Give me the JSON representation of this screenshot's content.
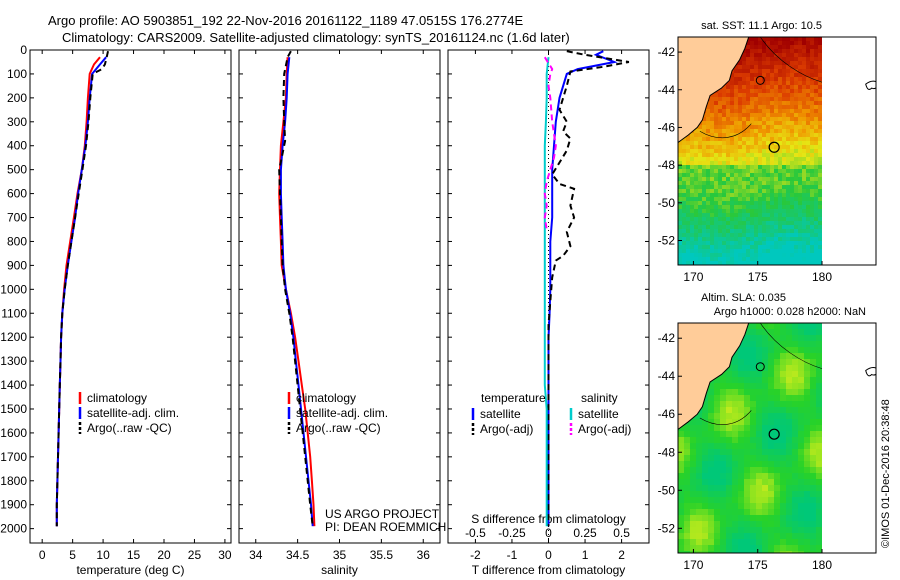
{
  "header": {
    "line1": "Argo profile: AO 5903851_192 22-Nov-2016 20161122_1189 47.0515S 176.2774E",
    "line2": "Climatology: CARS2009. Satellite-adjusted climatology: synTS_20161124.nc (1.6d later)"
  },
  "chart_data": [
    {
      "type": "line",
      "id": "temperature",
      "xlabel": "temperature (deg C)",
      "xlim": [
        -2,
        31
      ],
      "xticks": [
        0,
        5,
        10,
        15,
        20,
        25,
        30
      ],
      "ylim": [
        2060,
        0
      ],
      "yticks": [
        0,
        100,
        200,
        300,
        400,
        500,
        600,
        700,
        800,
        900,
        1000,
        1100,
        1200,
        1300,
        1400,
        1500,
        1600,
        1700,
        1800,
        1900,
        2000
      ],
      "series": [
        {
          "name": "climatology",
          "color": "#ff0000",
          "points": [
            [
              9.5,
              30
            ],
            [
              8.5,
              60
            ],
            [
              7.8,
              100
            ],
            [
              7.5,
              200
            ],
            [
              7.3,
              300
            ],
            [
              7.0,
              400
            ],
            [
              6.5,
              500
            ],
            [
              5.8,
              600
            ],
            [
              5.2,
              700
            ],
            [
              4.6,
              800
            ],
            [
              4.0,
              900
            ],
            [
              3.6,
              1000
            ],
            [
              3.3,
              1100
            ],
            [
              3.1,
              1200
            ],
            [
              3.0,
              1300
            ],
            [
              2.9,
              1400
            ],
            [
              2.8,
              1500
            ],
            [
              2.7,
              1600
            ],
            [
              2.6,
              1700
            ],
            [
              2.5,
              1800
            ],
            [
              2.4,
              1900
            ],
            [
              2.4,
              1990
            ]
          ]
        },
        {
          "name": "satellite-adj. clim.",
          "color": "#0000ff",
          "points": [
            [
              10.5,
              30
            ],
            [
              9.5,
              60
            ],
            [
              8.2,
              100
            ],
            [
              7.8,
              200
            ],
            [
              7.5,
              300
            ],
            [
              7.1,
              400
            ],
            [
              6.5,
              500
            ],
            [
              5.9,
              600
            ],
            [
              5.4,
              700
            ],
            [
              4.8,
              800
            ],
            [
              4.2,
              900
            ],
            [
              3.7,
              1000
            ],
            [
              3.3,
              1100
            ],
            [
              3.1,
              1200
            ],
            [
              3.0,
              1300
            ],
            [
              2.9,
              1400
            ],
            [
              2.8,
              1500
            ],
            [
              2.7,
              1600
            ],
            [
              2.6,
              1700
            ],
            [
              2.5,
              1800
            ],
            [
              2.4,
              1900
            ],
            [
              2.4,
              1990
            ]
          ]
        },
        {
          "name": "Argo(..raw -QC)",
          "color": "#000000",
          "dashed": true,
          "points": [
            [
              10.8,
              5
            ],
            [
              10.6,
              30
            ],
            [
              10.3,
              60
            ],
            [
              9.8,
              80
            ],
            [
              8.3,
              100
            ],
            [
              7.9,
              200
            ],
            [
              7.6,
              300
            ],
            [
              7.2,
              400
            ],
            [
              6.6,
              500
            ],
            [
              6.0,
              600
            ],
            [
              5.4,
              700
            ],
            [
              4.8,
              800
            ],
            [
              4.2,
              900
            ],
            [
              3.7,
              1000
            ],
            [
              3.3,
              1100
            ],
            [
              3.1,
              1200
            ],
            [
              3.0,
              1300
            ],
            [
              2.9,
              1400
            ],
            [
              2.8,
              1500
            ],
            [
              2.7,
              1600
            ],
            [
              2.6,
              1700
            ],
            [
              2.5,
              1800
            ],
            [
              2.4,
              1900
            ],
            [
              2.4,
              1990
            ]
          ]
        }
      ],
      "legend": [
        "climatology",
        "satellite-adj. clim.",
        "Argo(..raw -QC)"
      ]
    },
    {
      "type": "line",
      "id": "salinity",
      "xlabel": "salinity",
      "xlim": [
        33.8,
        36.2
      ],
      "xticks": [
        34,
        34.5,
        35,
        35.5,
        36
      ],
      "ylim": [
        2060,
        0
      ],
      "series": [
        {
          "name": "climatology",
          "color": "#ff0000",
          "points": [
            [
              34.38,
              30
            ],
            [
              34.37,
              100
            ],
            [
              34.36,
              200
            ],
            [
              34.33,
              300
            ],
            [
              34.3,
              400
            ],
            [
              34.29,
              500
            ],
            [
              34.28,
              600
            ],
            [
              34.29,
              700
            ],
            [
              34.3,
              800
            ],
            [
              34.31,
              900
            ],
            [
              34.36,
              1000
            ],
            [
              34.42,
              1100
            ],
            [
              34.47,
              1200
            ],
            [
              34.51,
              1300
            ],
            [
              34.55,
              1400
            ],
            [
              34.59,
              1500
            ],
            [
              34.62,
              1600
            ],
            [
              34.65,
              1700
            ],
            [
              34.67,
              1800
            ],
            [
              34.69,
              1900
            ],
            [
              34.7,
              1990
            ]
          ]
        },
        {
          "name": "satellite-adj. clim.",
          "color": "#0000ff",
          "points": [
            [
              34.4,
              30
            ],
            [
              34.38,
              100
            ],
            [
              34.37,
              200
            ],
            [
              34.35,
              300
            ],
            [
              34.32,
              400
            ],
            [
              34.3,
              500
            ],
            [
              34.3,
              600
            ],
            [
              34.31,
              700
            ],
            [
              34.32,
              800
            ],
            [
              34.33,
              900
            ],
            [
              34.36,
              1000
            ],
            [
              34.41,
              1100
            ],
            [
              34.45,
              1200
            ],
            [
              34.48,
              1300
            ],
            [
              34.51,
              1400
            ],
            [
              34.54,
              1500
            ],
            [
              34.57,
              1600
            ],
            [
              34.6,
              1700
            ],
            [
              34.63,
              1800
            ],
            [
              34.66,
              1900
            ],
            [
              34.68,
              1990
            ]
          ]
        },
        {
          "name": "Argo(..raw -QC)",
          "color": "#000000",
          "dashed": true,
          "points": [
            [
              34.42,
              5
            ],
            [
              34.38,
              30
            ],
            [
              34.34,
              100
            ],
            [
              34.33,
              200
            ],
            [
              34.34,
              300
            ],
            [
              34.35,
              380
            ],
            [
              34.31,
              450
            ],
            [
              34.28,
              500
            ],
            [
              34.29,
              600
            ],
            [
              34.3,
              700
            ],
            [
              34.31,
              800
            ],
            [
              34.32,
              900
            ],
            [
              34.35,
              1000
            ],
            [
              34.4,
              1100
            ],
            [
              34.44,
              1200
            ],
            [
              34.47,
              1300
            ],
            [
              34.5,
              1400
            ],
            [
              34.53,
              1500
            ],
            [
              34.56,
              1600
            ],
            [
              34.59,
              1700
            ],
            [
              34.62,
              1800
            ],
            [
              34.65,
              1900
            ],
            [
              34.68,
              1990
            ]
          ]
        }
      ],
      "legend": [
        "climatology",
        "satellite-adj. clim.",
        "Argo(..raw -QC)"
      ]
    },
    {
      "type": "line",
      "id": "difference",
      "xlabel": "T difference from climatology",
      "xlabel_top": "S difference from climatology",
      "xlim": [
        -2.75,
        2.75
      ],
      "xticks": [
        -2,
        -1,
        0,
        1,
        2
      ],
      "xticks_top": [
        -0.5,
        -0.25,
        0,
        0.25,
        0.5
      ],
      "xticklabels_top": [
        "-0.5",
        "-0.25",
        "0",
        "0.25",
        "0.5"
      ],
      "ylim": [
        2060,
        0
      ],
      "series": [
        {
          "name": "temperature satellite",
          "color": "#0000ff",
          "points": [
            [
              1.5,
              5
            ],
            [
              1.3,
              20
            ],
            [
              1.8,
              50
            ],
            [
              0.8,
              80
            ],
            [
              0.5,
              100
            ],
            [
              0.3,
              200
            ],
            [
              0.2,
              300
            ],
            [
              0.15,
              400
            ],
            [
              0.1,
              500
            ],
            [
              0.1,
              600
            ],
            [
              0.1,
              700
            ],
            [
              0.05,
              800
            ],
            [
              0.05,
              900
            ],
            [
              0.05,
              1000
            ],
            [
              0.03,
              1100
            ],
            [
              0.0,
              1200
            ],
            [
              0.0,
              1300
            ],
            [
              0.0,
              1400
            ],
            [
              0.0,
              1500
            ],
            [
              0.0,
              1600
            ],
            [
              0.0,
              1700
            ],
            [
              0.0,
              1800
            ],
            [
              0.0,
              1900
            ],
            [
              0.0,
              1990
            ]
          ]
        },
        {
          "name": "temperature Argo(-adj)",
          "color": "#000000",
          "dashed": true,
          "points": [
            [
              0.5,
              5
            ],
            [
              1.0,
              20
            ],
            [
              2.2,
              50
            ],
            [
              1.5,
              70
            ],
            [
              0.6,
              90
            ],
            [
              0.5,
              150
            ],
            [
              0.3,
              250
            ],
            [
              0.5,
              300
            ],
            [
              0.4,
              340
            ],
            [
              0.6,
              370
            ],
            [
              0.5,
              420
            ],
            [
              0.3,
              470
            ],
            [
              0.1,
              520
            ],
            [
              0.3,
              560
            ],
            [
              0.7,
              580
            ],
            [
              0.6,
              650
            ],
            [
              0.7,
              700
            ],
            [
              0.5,
              760
            ],
            [
              0.6,
              820
            ],
            [
              0.4,
              860
            ],
            [
              0.2,
              880
            ],
            [
              0.1,
              950
            ],
            [
              0.05,
              1050
            ],
            [
              0.0,
              1150
            ],
            [
              0.0,
              1300
            ],
            [
              0.0,
              1500
            ],
            [
              0.0,
              1700
            ],
            [
              0.0,
              1900
            ],
            [
              0.0,
              1990
            ]
          ]
        },
        {
          "name": "salinity satellite",
          "color": "#00cccc",
          "points": [
            [
              0.0,
              30
            ],
            [
              -0.05,
              100
            ],
            [
              -0.05,
              200
            ],
            [
              -0.07,
              300
            ],
            [
              -0.1,
              400
            ],
            [
              -0.1,
              500
            ],
            [
              -0.1,
              600
            ],
            [
              -0.1,
              700
            ],
            [
              -0.1,
              800
            ],
            [
              -0.1,
              900
            ],
            [
              -0.1,
              1000
            ],
            [
              -0.1,
              1100
            ],
            [
              -0.1,
              1200
            ],
            [
              -0.1,
              1300
            ],
            [
              -0.1,
              1400
            ],
            [
              -0.05,
              1500
            ],
            [
              -0.05,
              1600
            ],
            [
              -0.05,
              1700
            ],
            [
              -0.05,
              1800
            ],
            [
              -0.05,
              1900
            ],
            [
              -0.05,
              1990
            ]
          ]
        },
        {
          "name": "salinity Argo(-adj)",
          "color": "#ff00ff",
          "dashed": true,
          "points": [
            [
              -0.1,
              30
            ],
            [
              0.1,
              80
            ],
            [
              0.05,
              100
            ],
            [
              0.0,
              150
            ],
            [
              0.05,
              200
            ],
            [
              0.1,
              300
            ],
            [
              0.2,
              400
            ],
            [
              0.15,
              450
            ],
            [
              0.05,
              500
            ],
            [
              -0.05,
              550
            ],
            [
              -0.1,
              600
            ],
            [
              -0.05,
              650
            ],
            [
              -0.1,
              700
            ],
            [
              -0.05,
              750
            ]
          ]
        }
      ],
      "legend_groups": [
        {
          "title": "temperature",
          "items": [
            "satellite",
            "Argo(-adj)"
          ]
        },
        {
          "title": "salinity",
          "items": [
            "satellite",
            "Argo(-adj)"
          ]
        }
      ]
    },
    {
      "type": "heatmap",
      "id": "sst_map",
      "title": "sat. SST: 11.1  Argo: 10.5",
      "xticks": [
        170,
        175,
        180
      ],
      "yticks": [
        -42,
        -44,
        -46,
        -48,
        -50,
        -52
      ],
      "xlim": [
        168.8,
        184.2
      ],
      "ylim": [
        -53.3,
        -41.2
      ],
      "data_xmax": 180,
      "float_position": [
        176.28,
        -47.05
      ]
    },
    {
      "type": "heatmap",
      "id": "sla_map",
      "title_line1": "Altim. SLA: 0.035",
      "title_line2": "Argo h1000: 0.028 h2000: NaN",
      "xticks": [
        170,
        175,
        180
      ],
      "yticks": [
        -42,
        -44,
        -46,
        -48,
        -50,
        -52
      ],
      "xlim": [
        168.8,
        184.2
      ],
      "ylim": [
        -53.3,
        -41.2
      ],
      "data_xmax": 180,
      "float_position": [
        176.28,
        -47.05
      ]
    }
  ],
  "annotations": {
    "project_line1": "US ARGO PROJECT",
    "project_line2": "PI: DEAN ROEMMICH",
    "credit": "©IMOS 01-Dec-2016 20:38:48"
  },
  "colors": {
    "land": "#ffcc99",
    "coast": "#000000"
  }
}
